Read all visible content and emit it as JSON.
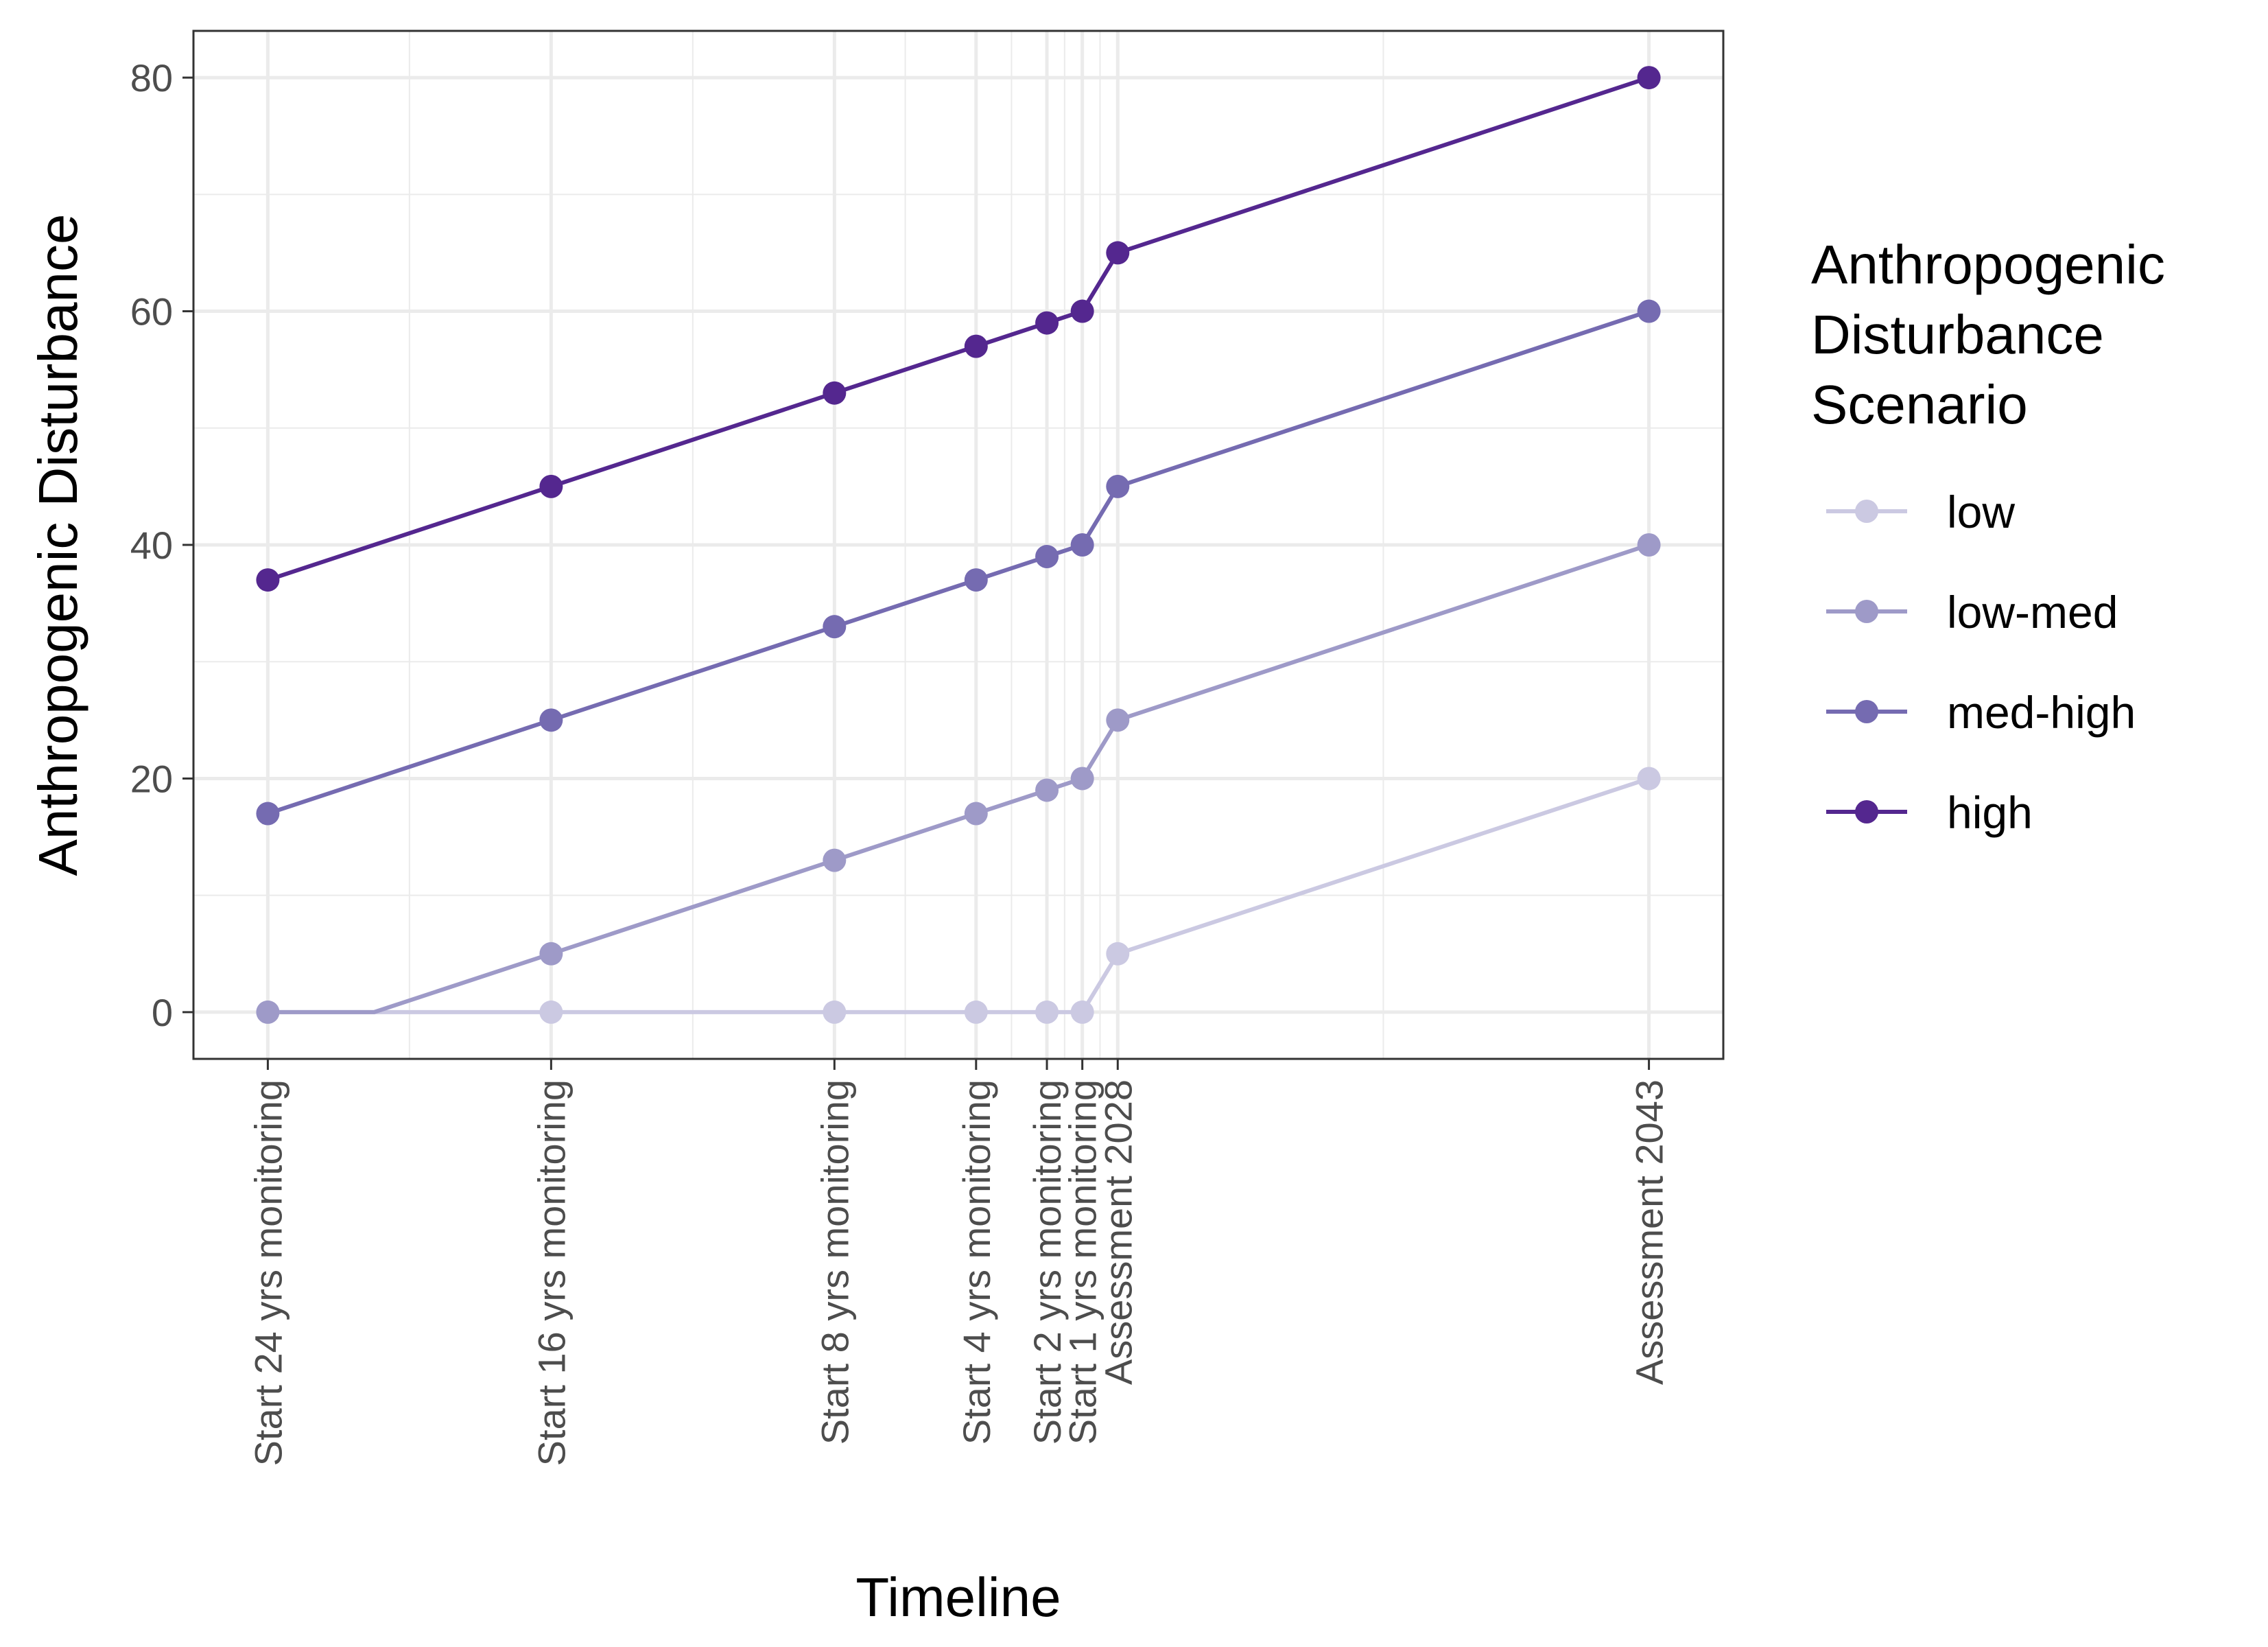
{
  "chart_data": {
    "type": "line",
    "xlabel": "Timeline",
    "ylabel": "Anthropogenic Disturbance",
    "x_years": [
      2004,
      2012,
      2020,
      2024,
      2026,
      2027,
      2028,
      2043
    ],
    "x_tick_labels": [
      "Start 24 yrs monitoring",
      "Start 16 yrs monitoring",
      "Start 8 yrs monitoring",
      "Start 4 yrs monitoring",
      "Start 2 yrs monitoring",
      "Start 1 yrs monitoring",
      "Assessment 2028",
      "Assessment 2043"
    ],
    "xlim": [
      2001.9,
      2045.1
    ],
    "ylim": [
      -4,
      84
    ],
    "y_ticks": [
      0,
      20,
      40,
      60,
      80
    ],
    "grid": true,
    "legend": {
      "title": [
        "Anthropogenic",
        "Disturbance",
        "Scenario"
      ],
      "position": "right"
    },
    "series": [
      {
        "name": "low",
        "color": "#cbc9e2",
        "line": [
          [
            2004,
            0
          ],
          [
            2007,
            0
          ],
          [
            2027,
            0
          ],
          [
            2028,
            5
          ],
          [
            2043,
            20
          ]
        ],
        "points": [
          [
            2004,
            0
          ],
          [
            2012,
            0
          ],
          [
            2020,
            0
          ],
          [
            2024,
            0
          ],
          [
            2026,
            0
          ],
          [
            2027,
            0
          ],
          [
            2028,
            5
          ],
          [
            2043,
            20
          ]
        ]
      },
      {
        "name": "low-med",
        "color": "#9e9ac8",
        "line": [
          [
            2004,
            0
          ],
          [
            2007,
            0
          ],
          [
            2012,
            5
          ],
          [
            2020,
            13
          ],
          [
            2024,
            17
          ],
          [
            2026,
            19
          ],
          [
            2027,
            20
          ],
          [
            2028,
            25
          ],
          [
            2043,
            40
          ]
        ],
        "points": [
          [
            2004,
            0
          ],
          [
            2012,
            5
          ],
          [
            2020,
            13
          ],
          [
            2024,
            17
          ],
          [
            2026,
            19
          ],
          [
            2027,
            20
          ],
          [
            2028,
            25
          ],
          [
            2043,
            40
          ]
        ]
      },
      {
        "name": "med-high",
        "color": "#756bb1",
        "line": [
          [
            2004,
            17
          ],
          [
            2012,
            25
          ],
          [
            2020,
            33
          ],
          [
            2024,
            37
          ],
          [
            2026,
            39
          ],
          [
            2027,
            40
          ],
          [
            2028,
            45
          ],
          [
            2043,
            60
          ]
        ],
        "points": [
          [
            2004,
            17
          ],
          [
            2012,
            25
          ],
          [
            2020,
            33
          ],
          [
            2024,
            37
          ],
          [
            2026,
            39
          ],
          [
            2027,
            40
          ],
          [
            2028,
            45
          ],
          [
            2043,
            60
          ]
        ]
      },
      {
        "name": "high",
        "color": "#54278f",
        "line": [
          [
            2004,
            37
          ],
          [
            2012,
            45
          ],
          [
            2020,
            53
          ],
          [
            2024,
            57
          ],
          [
            2026,
            59
          ],
          [
            2027,
            60
          ],
          [
            2028,
            65
          ],
          [
            2043,
            80
          ]
        ],
        "points": [
          [
            2004,
            37
          ],
          [
            2012,
            45
          ],
          [
            2020,
            53
          ],
          [
            2024,
            57
          ],
          [
            2026,
            59
          ],
          [
            2027,
            60
          ],
          [
            2028,
            65
          ],
          [
            2043,
            80
          ]
        ]
      }
    ]
  }
}
